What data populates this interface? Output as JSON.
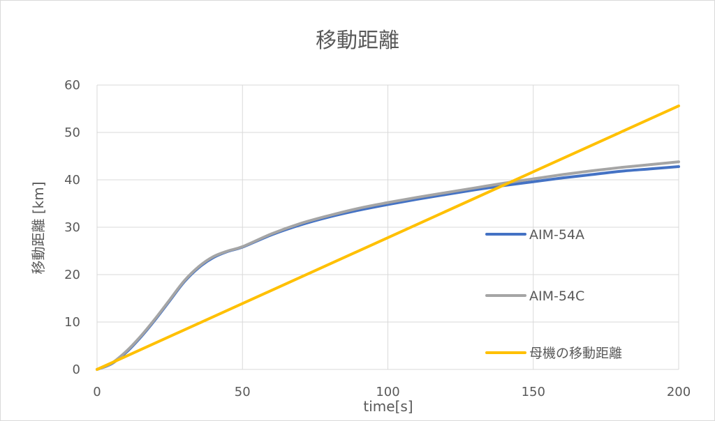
{
  "chart_data": {
    "type": "line",
    "title": "移動距離",
    "xlabel": "time[s]",
    "ylabel": "移動距離 [km]",
    "xlim": [
      0,
      200
    ],
    "ylim": [
      0,
      60
    ],
    "xticks": [
      0,
      50,
      100,
      150,
      200
    ],
    "yticks": [
      0,
      10,
      20,
      30,
      40,
      50,
      60
    ],
    "grid": true,
    "legend": "right",
    "series": [
      {
        "name": "AIM-54A",
        "color": "#4472C4",
        "x": [
          0,
          5,
          10,
          15,
          20,
          25,
          30,
          35,
          40,
          45,
          50,
          60,
          70,
          80,
          90,
          100,
          110,
          120,
          130,
          140,
          150,
          160,
          170,
          180,
          190,
          200
        ],
        "y": [
          0,
          1.2,
          3.6,
          6.8,
          10.5,
          14.5,
          18.5,
          21.5,
          23.6,
          24.9,
          25.8,
          28.4,
          30.5,
          32.2,
          33.6,
          34.8,
          35.9,
          36.9,
          37.9,
          38.8,
          39.6,
          40.4,
          41.1,
          41.8,
          42.3,
          42.8
        ]
      },
      {
        "name": "AIM-54C",
        "color": "#A5A5A5",
        "x": [
          0,
          5,
          10,
          15,
          20,
          25,
          30,
          35,
          40,
          45,
          50,
          60,
          70,
          80,
          90,
          100,
          110,
          120,
          130,
          140,
          150,
          160,
          170,
          180,
          190,
          200
        ],
        "y": [
          0,
          1.3,
          3.8,
          7.0,
          10.7,
          14.7,
          18.7,
          21.7,
          23.8,
          25.0,
          25.9,
          28.6,
          30.8,
          32.5,
          34.0,
          35.2,
          36.3,
          37.3,
          38.3,
          39.3,
          40.2,
          41.1,
          41.9,
          42.6,
          43.2,
          43.8
        ]
      },
      {
        "name": "母機の移動距離",
        "color": "#FFC000",
        "x": [
          0,
          200
        ],
        "y": [
          0,
          55.6
        ]
      }
    ]
  }
}
